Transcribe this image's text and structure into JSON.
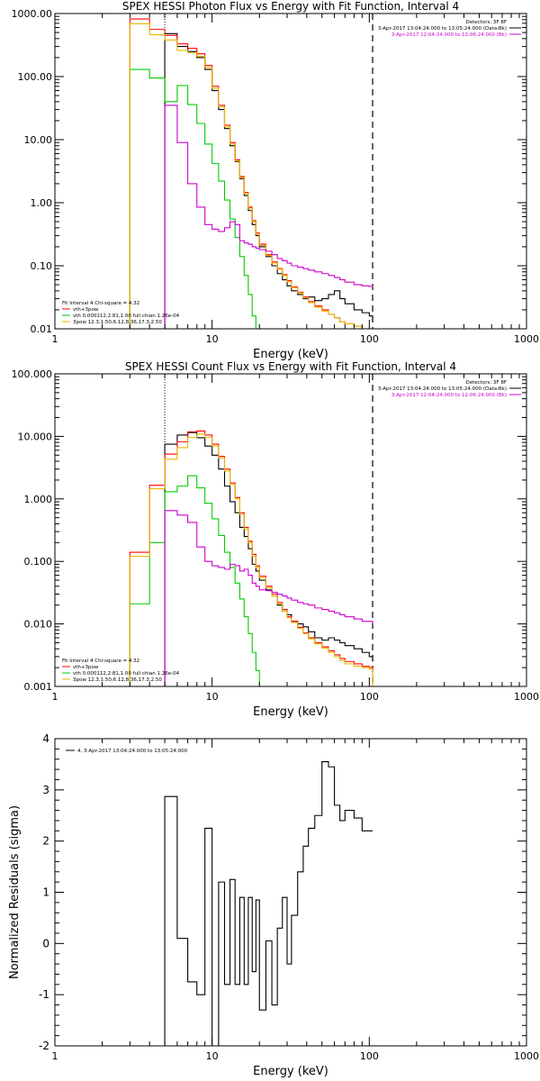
{
  "chart_data": [
    {
      "type": "line",
      "title": "SPEX HESSI Photon Flux vs Energy with Fit Function, Interval 4",
      "xlabel": "Energy (keV)",
      "ylabel": "",
      "xscale": "log",
      "yscale": "log",
      "xlim": [
        1,
        1000
      ],
      "ylim": [
        0.01,
        1000
      ],
      "xticks": [
        "1",
        "10",
        "100",
        "1000"
      ],
      "yticks": [
        "0.01",
        "0.10",
        "1.00",
        "10.00",
        "100.00",
        "1000.00"
      ],
      "top_right_legend": [
        {
          "text": "Detectors: 3F 8F",
          "color": "#000000"
        },
        {
          "text": "3-Apr-2017 13:04:24.000 to 13:05:24.000 (Data-Bk)",
          "color": "#000000"
        },
        {
          "text": "3-Apr-2017 12:04:24.000 to 12:06:24.000 (Bk)",
          "color": "#cc00cc"
        }
      ],
      "bottom_left_legend": [
        {
          "text": "Fit Interval  4    Chi-square = 4.32",
          "color": "#000000"
        },
        {
          "text": "vth+3pow",
          "color": "#ff0000"
        },
        {
          "text": "vth 0.000112,2.81,1.00   full chian 1.26e-04",
          "color": "#00cc00"
        },
        {
          "text": "3pow 12.3,1.50,6.12,8.36,17.3,2.50",
          "color": "#e8b800"
        }
      ],
      "vlines_x": [
        5,
        105
      ],
      "edges": [
        3.0,
        4.0,
        5.0,
        6.0,
        7.0,
        8.0,
        9.0,
        10.0,
        11.0,
        12.0,
        13.0,
        14.0,
        15.0,
        16.0,
        17.0,
        18.0,
        19.0,
        20.0,
        22.0,
        24.0,
        26.0,
        28.0,
        30.0,
        32.0,
        35.0,
        38.0,
        41.0,
        45.0,
        50.0,
        55.0,
        60.0,
        65.0,
        70.0,
        80.0,
        90.0,
        100.0,
        105.0
      ],
      "series": [
        {
          "name": "Data-Bk",
          "color": "#000000",
          "start": 2,
          "values": [
            480,
            300,
            250,
            200,
            130,
            60,
            30,
            15,
            8,
            4.5,
            2.4,
            1.3,
            0.75,
            0.45,
            0.3,
            0.2,
            0.14,
            0.1,
            0.075,
            0.06,
            0.048,
            0.04,
            0.035,
            0.03,
            0.032,
            0.028,
            0.03,
            0.035,
            0.04,
            0.03,
            0.025,
            0.02,
            0.018,
            0.016,
            0.013
          ]
        },
        {
          "name": "vth+3pow",
          "color": "#ff0000",
          "start": 0,
          "values": [
            820,
            560,
            450,
            330,
            280,
            230,
            150,
            70,
            35,
            17,
            9,
            4.8,
            2.6,
            1.45,
            0.85,
            0.52,
            0.33,
            0.22,
            0.15,
            0.115,
            0.09,
            0.072,
            0.058,
            0.046,
            0.038,
            0.032,
            0.027,
            0.023,
            0.02,
            0.017,
            0.015,
            0.013,
            0.012,
            0.011,
            0.01,
            0.0095
          ]
        },
        {
          "name": "vth",
          "color": "#00cc00",
          "start": 0,
          "values": [
            130,
            95,
            40,
            72,
            36,
            18,
            8.5,
            4.2,
            2.2,
            1.1,
            0.55,
            0.28,
            0.14,
            0.07,
            0.035,
            0.016,
            0.008
          ]
        },
        {
          "name": "3pow",
          "color": "#e8b800",
          "start": 0,
          "values": [
            690,
            460,
            380,
            260,
            240,
            210,
            140,
            65,
            33,
            16,
            8.5,
            4.6,
            2.5,
            1.4,
            0.82,
            0.5,
            0.32,
            0.21,
            0.145,
            0.11,
            0.088,
            0.07,
            0.056,
            0.045,
            0.037,
            0.031,
            0.026,
            0.022,
            0.019,
            0.017,
            0.015,
            0.013,
            0.012,
            0.011,
            0.01,
            0.0095
          ]
        },
        {
          "name": "Bk",
          "color": "#cc00cc",
          "start": 2,
          "values": [
            35,
            9,
            2.0,
            0.85,
            0.45,
            0.38,
            0.35,
            0.4,
            0.5,
            0.45,
            0.25,
            0.23,
            0.22,
            0.2,
            0.19,
            0.18,
            0.17,
            0.15,
            0.13,
            0.12,
            0.11,
            0.1,
            0.095,
            0.09,
            0.085,
            0.08,
            0.075,
            0.07,
            0.065,
            0.06,
            0.055,
            0.05,
            0.048,
            0.047,
            0.045
          ]
        }
      ]
    },
    {
      "type": "line",
      "title": "SPEX HESSI Count Flux vs Energy with Fit Function, Interval 4",
      "xlabel": "Energy (keV)",
      "ylabel": "",
      "xscale": "log",
      "yscale": "log",
      "xlim": [
        1,
        1000
      ],
      "ylim": [
        0.001,
        100
      ],
      "xticks": [
        "1",
        "10",
        "100",
        "1000"
      ],
      "yticks": [
        "0.001",
        "0.010",
        "0.100",
        "1.000",
        "10.000",
        "100.000"
      ],
      "top_right_legend": [
        {
          "text": "Detectors: 3F 8F",
          "color": "#000000"
        },
        {
          "text": "3-Apr-2017 13:04:24.000 to 13:05:24.000 (Data-Bk)",
          "color": "#000000"
        },
        {
          "text": "3-Apr-2017 12:04:24.000 to 12:06:24.000 (Bk)",
          "color": "#cc00cc"
        }
      ],
      "bottom_left_legend": [
        {
          "text": "Fit Interval  4    Chi-square = 4.32",
          "color": "#000000"
        },
        {
          "text": "vth+3pow",
          "color": "#ff0000"
        },
        {
          "text": "vth 0.000112,2.81,1.00   full chian 1.26e-04",
          "color": "#00cc00"
        },
        {
          "text": "3pow 12.3,1.50,6.12,8.36,17.3,2.50",
          "color": "#e8b800"
        }
      ],
      "vlines_x": [
        5,
        105
      ],
      "edges": [
        3.0,
        4.0,
        5.0,
        6.0,
        7.0,
        8.0,
        9.0,
        10.0,
        11.0,
        12.0,
        13.0,
        14.0,
        15.0,
        16.0,
        17.0,
        18.0,
        19.0,
        20.0,
        22.0,
        24.0,
        26.0,
        28.0,
        30.0,
        32.0,
        35.0,
        38.0,
        41.0,
        45.0,
        50.0,
        55.0,
        60.0,
        65.0,
        70.0,
        80.0,
        90.0,
        100.0,
        105.0
      ],
      "series": [
        {
          "name": "Data-Bk",
          "color": "#000000",
          "start": 2,
          "values": [
            7.5,
            10.5,
            11.5,
            9.5,
            7.0,
            5.0,
            3.0,
            1.6,
            0.9,
            0.6,
            0.35,
            0.25,
            0.16,
            0.09,
            0.07,
            0.05,
            0.035,
            0.028,
            0.02,
            0.016,
            0.014,
            0.011,
            0.01,
            0.009,
            0.0075,
            0.006,
            0.0055,
            0.006,
            0.0055,
            0.005,
            0.0045,
            0.004,
            0.0035,
            0.003,
            0.0025
          ]
        },
        {
          "name": "vth+3pow",
          "color": "#ff0000",
          "start": 0,
          "values": [
            0.14,
            1.65,
            5.2,
            8.2,
            11.8,
            12.2,
            10.5,
            7.5,
            4.8,
            3.0,
            1.8,
            1.05,
            0.6,
            0.35,
            0.21,
            0.13,
            0.085,
            0.058,
            0.04,
            0.03,
            0.022,
            0.017,
            0.013,
            0.011,
            0.0088,
            0.0072,
            0.006,
            0.005,
            0.0043,
            0.0037,
            0.0032,
            0.0028,
            0.0025,
            0.0023,
            0.0021,
            0.002
          ]
        },
        {
          "name": "vth",
          "color": "#00cc00",
          "start": 0,
          "values": [
            0.021,
            0.2,
            1.3,
            1.6,
            2.35,
            1.5,
            0.85,
            0.48,
            0.26,
            0.14,
            0.08,
            0.045,
            0.025,
            0.013,
            0.007,
            0.0035,
            0.0018,
            0.001
          ]
        },
        {
          "name": "3pow",
          "color": "#e8b800",
          "start": 0,
          "values": [
            0.12,
            1.45,
            4.3,
            6.6,
            9.6,
            10.9,
            9.6,
            7.0,
            4.5,
            2.8,
            1.7,
            1.0,
            0.57,
            0.33,
            0.2,
            0.12,
            0.08,
            0.055,
            0.038,
            0.028,
            0.021,
            0.016,
            0.0125,
            0.0105,
            0.0085,
            0.007,
            0.0058,
            0.0048,
            0.0041,
            0.0035,
            0.003,
            0.0026,
            0.0023,
            0.0021,
            0.002,
            0.0019
          ]
        },
        {
          "name": "Bk",
          "color": "#cc00cc",
          "start": 2,
          "values": [
            0.65,
            0.55,
            0.42,
            0.17,
            0.1,
            0.085,
            0.08,
            0.075,
            0.09,
            0.085,
            0.07,
            0.075,
            0.06,
            0.045,
            0.04,
            0.035,
            0.034,
            0.032,
            0.03,
            0.028,
            0.026,
            0.024,
            0.022,
            0.021,
            0.02,
            0.018,
            0.017,
            0.016,
            0.015,
            0.014,
            0.013,
            0.012,
            0.011,
            0.011,
            0.01
          ]
        }
      ]
    },
    {
      "type": "line",
      "title": "",
      "xlabel": "Energy (keV)",
      "ylabel": "Normalized Residuals (sigma)",
      "xscale": "log",
      "yscale": "linear",
      "xlim": [
        1,
        1000
      ],
      "ylim": [
        -2,
        4
      ],
      "xticks": [
        "1",
        "10",
        "100",
        "1000"
      ],
      "yticks": [
        "-2",
        "-1",
        "0",
        "1",
        "2",
        "3",
        "4"
      ],
      "top_left_legend": [
        {
          "text": "4,  3-Apr-2017 13:04:24.000 to 13:05:24.000",
          "color": "#000000"
        }
      ],
      "edges": [
        5.0,
        6.0,
        7.0,
        8.0,
        9.0,
        10.0,
        11.0,
        12.0,
        13.0,
        14.0,
        15.0,
        16.0,
        17.0,
        18.0,
        19.0,
        20.0,
        22.0,
        24.0,
        26.0,
        28.0,
        30.0,
        32.0,
        35.0,
        38.0,
        41.0,
        45.0,
        50.0,
        55.0,
        60.0,
        65.0,
        70.0,
        80.0,
        90.0,
        100.0,
        105.0
      ],
      "series": [
        {
          "name": "Residuals",
          "color": "#000000",
          "start": 0,
          "values": [
            2.87,
            0.1,
            -0.75,
            -1.0,
            2.25,
            -2.1,
            1.2,
            -0.8,
            1.25,
            -0.8,
            0.9,
            -0.8,
            0.9,
            -0.55,
            0.85,
            -1.3,
            0.05,
            -1.2,
            0.3,
            0.9,
            -0.4,
            0.55,
            1.4,
            1.9,
            2.25,
            2.5,
            3.55,
            3.45,
            2.7,
            2.4,
            2.6,
            2.45,
            2.2,
            2.2
          ]
        }
      ]
    }
  ]
}
